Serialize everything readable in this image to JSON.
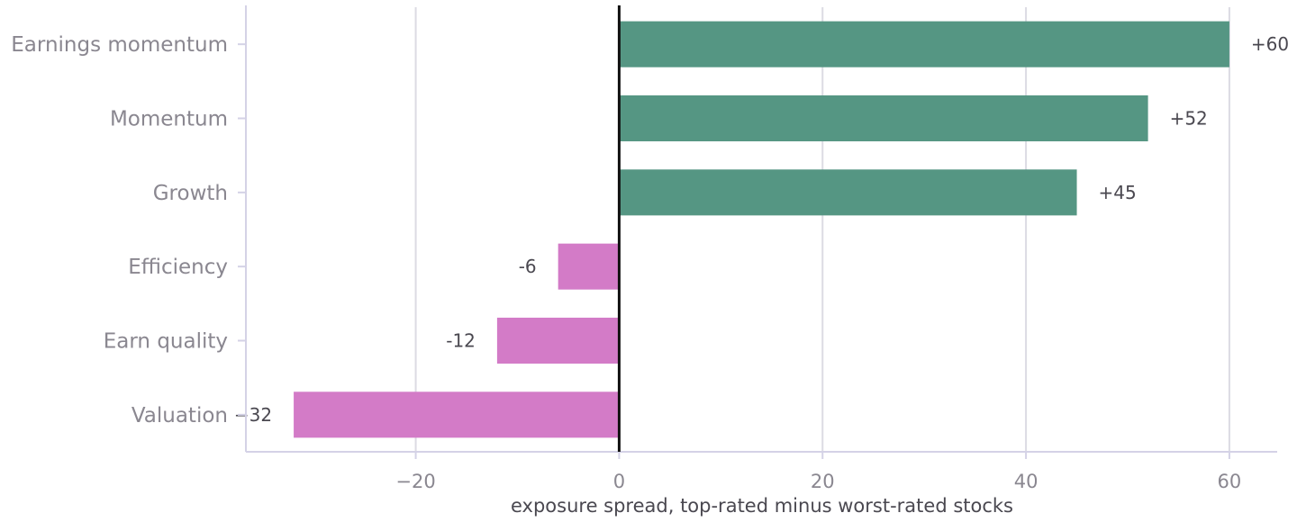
{
  "chart_data": {
    "type": "bar",
    "orientation": "horizontal",
    "categories": [
      "Earnings momentum",
      "Momentum",
      "Growth",
      "Efficiency",
      "Earn quality",
      "Valuation"
    ],
    "values": [
      60,
      52,
      45,
      -6,
      -12,
      -32
    ],
    "value_labels": [
      "+60",
      "+52",
      "+45",
      "-6",
      "-12",
      "−32"
    ],
    "xlabel": "exposure spread, top-rated minus worst-rated stocks",
    "ylabel": "",
    "title": "",
    "xlim": [
      -36.7,
      64.7
    ],
    "xticks": [
      -20,
      0,
      20,
      40,
      60
    ],
    "xtick_labels": [
      "−20",
      "0",
      "20",
      "40",
      "60"
    ],
    "grid": "vertical",
    "legend": "none",
    "colors": {
      "positive": "#559683",
      "negative": "#d37bc7",
      "zero_line": "#111111",
      "grid": "#dcdbe3",
      "spine": "#d4d2e6"
    }
  }
}
